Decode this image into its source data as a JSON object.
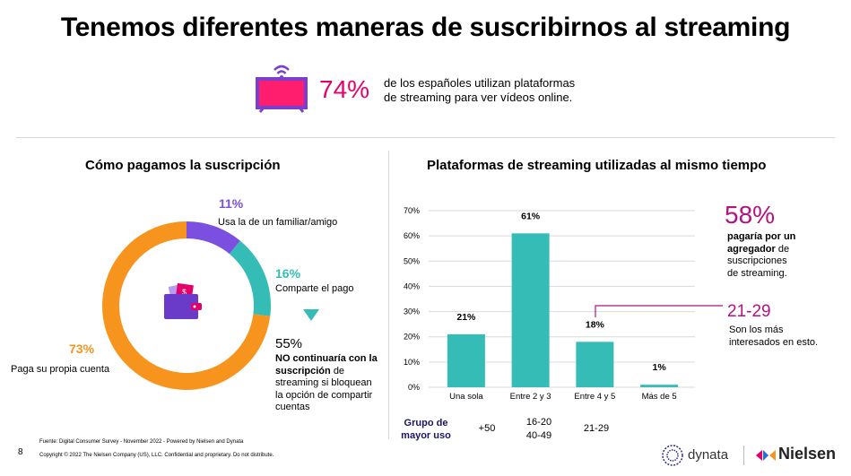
{
  "page": {
    "title": "Tenemos diferentes maneras de suscribirnos al streaming",
    "stat_pct": "74%",
    "stat_text_line1": "de los españoles utilizan plataformas",
    "stat_text_line2": "de streaming para ver vídeos online.",
    "page_number": "8",
    "source": "Fuente: Digital Consumer Survey - November 2022 - Powered by Nielsen and Dynata",
    "copyright": "Copyright © 2022 The Nielsen Company (US), LLC. Confidential and proprietary. Do not distribute.",
    "logo_dynata": "dynata",
    "logo_nielsen": "Nielsen"
  },
  "colors": {
    "accent_pink": "#e4006b",
    "purple": "#7b4fe0",
    "teal": "#36bcb6",
    "orange": "#f7941d",
    "magenta": "#b3127f",
    "tv_pink": "#ff1d6e",
    "tv_frame": "#7b3fcf"
  },
  "left": {
    "title": "Cómo pagamos la suscripción",
    "note_pct": "55%",
    "note_bold": "NO continuaría con la suscripción",
    "note_rest_1": "de",
    "note_rest_2": "streaming si bloquean la opción de compartir cuentas"
  },
  "right": {
    "title": "Plataformas de streaming utilizadas al mismo tiempo",
    "callout_pct": "58%",
    "callout_bold_1": "pagaría por un",
    "callout_bold_2": "agregador",
    "callout_rest_1": "de",
    "callout_rest_2": "suscripciones",
    "callout_rest_3": "de streaming.",
    "age_range": "21-29",
    "age_text_1": "Son los más",
    "age_text_2": "interesados en esto.",
    "group_label_1": "Grupo de",
    "group_label_2": "mayor uso",
    "groups": [
      "+50",
      "16-20",
      "40-49",
      "21-29"
    ]
  },
  "chart_data": [
    {
      "type": "pie",
      "title": "Cómo pagamos la suscripción",
      "slices": [
        {
          "label": "Usa la de un familiar/amigo",
          "value": 11,
          "display": "11%",
          "color": "#7b4fe0"
        },
        {
          "label": "Comparte el pago",
          "value": 16,
          "display": "16%",
          "color": "#36bcb6"
        },
        {
          "label": "Paga su propia cuenta",
          "value": 73,
          "display": "73%",
          "color": "#f7941d"
        }
      ]
    },
    {
      "type": "bar",
      "title": "Plataformas de streaming utilizadas al mismo tiempo",
      "categories": [
        "Una sola",
        "Entre 2 y 3",
        "Entre 4 y 5",
        "Más de 5"
      ],
      "values": [
        21,
        61,
        18,
        1
      ],
      "value_labels": [
        "21%",
        "61%",
        "18%",
        "1%"
      ],
      "ylim": [
        0,
        70
      ],
      "yticks": [
        "0%",
        "10%",
        "20%",
        "30%",
        "40%",
        "50%",
        "60%",
        "70%"
      ],
      "grid": true,
      "color": "#36bcb6"
    }
  ]
}
